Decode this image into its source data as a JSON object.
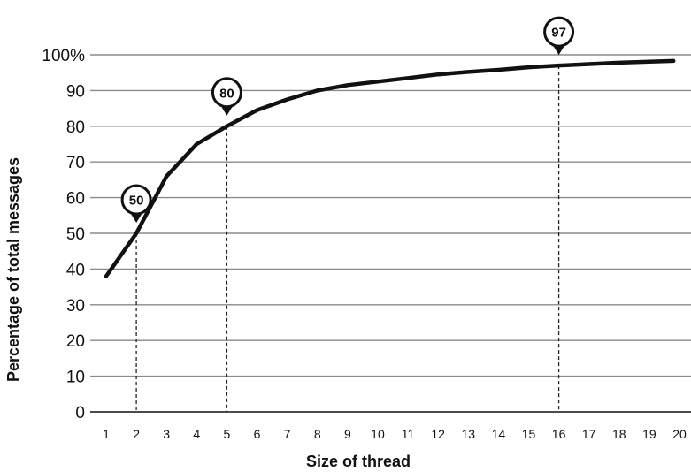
{
  "chart_data": {
    "type": "line",
    "xlabel": "Size of thread",
    "ylabel": "Percentage of total messages",
    "xlim": [
      1,
      20
    ],
    "ylim": [
      0,
      100
    ],
    "x_ticks": [
      "1",
      "2",
      "3",
      "4",
      "5",
      "6",
      "7",
      "8",
      "9",
      "10",
      "11",
      "12",
      "13",
      "14",
      "15",
      "16",
      "17",
      "18",
      "19",
      "20"
    ],
    "y_ticks": [
      "0",
      "10",
      "20",
      "30",
      "40",
      "50",
      "60",
      "70",
      "80",
      "90",
      "100%"
    ],
    "grid": "horizontal",
    "series": [
      {
        "x": [
          1,
          2,
          3,
          4,
          5,
          6,
          7,
          8,
          9,
          10,
          11,
          12,
          13,
          14,
          15,
          16,
          17,
          18,
          19,
          19.8
        ],
        "values": [
          38,
          50,
          66,
          75,
          80,
          84.5,
          87.5,
          90,
          91.5,
          92.5,
          93.5,
          94.5,
          95.2,
          95.8,
          96.5,
          97,
          97.4,
          97.8,
          98.1,
          98.3
        ]
      }
    ],
    "annotations": [
      {
        "label": "50",
        "x": 2,
        "y": 50
      },
      {
        "label": "80",
        "x": 5,
        "y": 80
      },
      {
        "label": "97",
        "x": 16,
        "y": 97
      }
    ]
  }
}
